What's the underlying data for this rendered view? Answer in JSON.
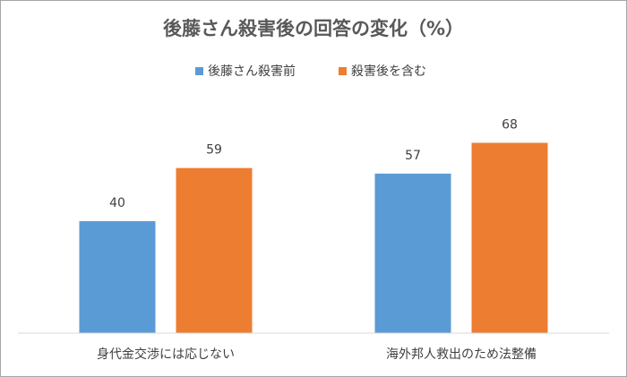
{
  "chart_data": {
    "type": "bar",
    "title": "後藤さん殺害後の回答の変化（%）",
    "categories": [
      "身代金交渉には応じない",
      "海外邦人救出のため法整備"
    ],
    "series": [
      {
        "name": "後藤さん殺害前",
        "color": "#5b9bd5",
        "values": [
          40,
          57
        ]
      },
      {
        "name": "殺害後を含む",
        "color": "#ed7d31",
        "values": [
          59,
          68
        ]
      }
    ],
    "ylim": [
      0,
      80
    ],
    "legend": "top"
  }
}
